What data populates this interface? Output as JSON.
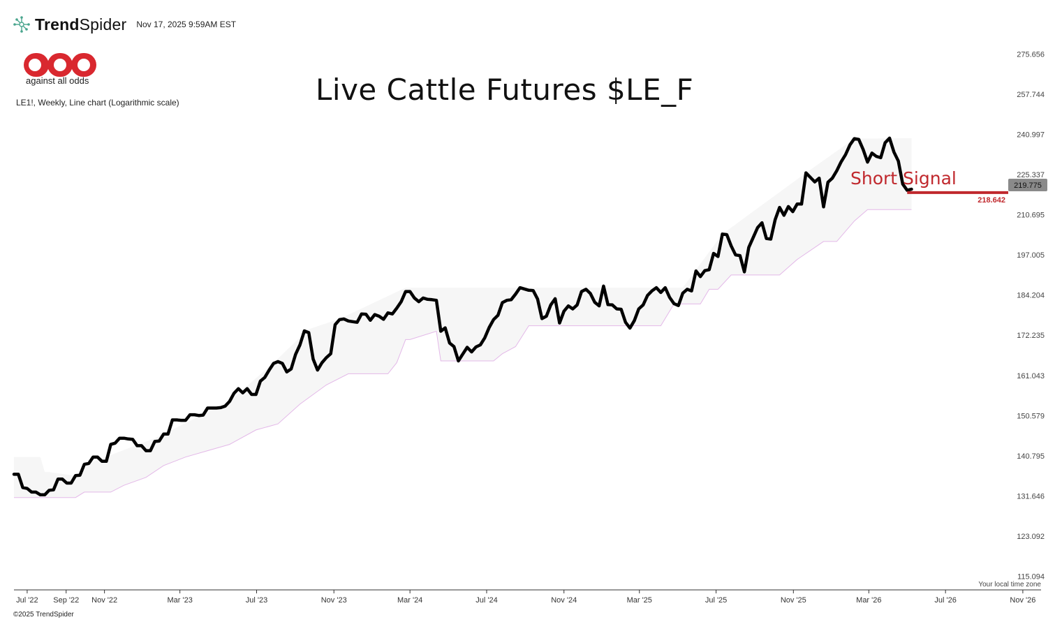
{
  "header": {
    "brand_bold": "Trend",
    "brand_light": "Spider",
    "timestamp": "Nov 17, 2025 9:59AM EST"
  },
  "logo": {
    "tagline": "against all odds"
  },
  "chart_description": "LE1!, Weekly, Line chart (Logarithmic scale)",
  "footer": {
    "copyright": "©2025 TrendSpider",
    "timezone_note": "Your local time zone"
  },
  "colors": {
    "price_line": "#000000",
    "signal": "#c0282d",
    "band_fill": "#f6f6f6",
    "band_edge": "#e3b8e8",
    "last_price_tag": "#8a8a8a"
  },
  "chart_data": {
    "type": "line",
    "title": "Live Cattle Futures $LE_F",
    "scale": "log",
    "ylim": [
      112.5,
      282
    ],
    "y_ticks": [
      "275.656",
      "257.744",
      "240.997",
      "225.337",
      "210.695",
      "197.005",
      "184.204",
      "172.235",
      "161.043",
      "150.579",
      "140.795",
      "131.646",
      "123.092",
      "115.094"
    ],
    "x_ticks": [
      "Jul '22",
      "Sep '22",
      "Nov '22",
      "Mar '23",
      "Jul '23",
      "Nov '23",
      "Mar '24",
      "Jul '24",
      "Nov '24",
      "Mar '25",
      "Jul '25",
      "Nov '25",
      "Mar '26",
      "Jul '26",
      "Nov '26"
    ],
    "x_range": [
      "2022-06-10",
      "2026-11-30"
    ],
    "series": [
      {
        "role": "price",
        "points": [
          [
            "2022-06-10",
            136.5
          ],
          [
            "2022-06-17",
            136.5
          ],
          [
            "2022-06-24",
            133.5
          ],
          [
            "2022-07-01",
            133.3
          ],
          [
            "2022-07-08",
            132.5
          ],
          [
            "2022-07-15",
            132.5
          ],
          [
            "2022-07-22",
            131.9
          ],
          [
            "2022-07-29",
            131.9
          ],
          [
            "2022-08-05",
            132.9
          ],
          [
            "2022-08-12",
            133.0
          ],
          [
            "2022-08-19",
            135.4
          ],
          [
            "2022-08-26",
            135.4
          ],
          [
            "2022-09-02",
            134.5
          ],
          [
            "2022-09-09",
            134.5
          ],
          [
            "2022-09-16",
            136.2
          ],
          [
            "2022-09-23",
            136.3
          ],
          [
            "2022-09-30",
            138.8
          ],
          [
            "2022-10-07",
            139.0
          ],
          [
            "2022-10-14",
            140.5
          ],
          [
            "2022-10-21",
            140.5
          ],
          [
            "2022-10-28",
            139.5
          ],
          [
            "2022-11-04",
            139.5
          ],
          [
            "2022-11-11",
            143.5
          ],
          [
            "2022-11-18",
            143.8
          ],
          [
            "2022-11-25",
            145.0
          ],
          [
            "2022-12-02",
            145.0
          ],
          [
            "2022-12-09",
            144.8
          ],
          [
            "2022-12-16",
            144.7
          ],
          [
            "2022-12-23",
            143.2
          ],
          [
            "2022-12-30",
            143.2
          ],
          [
            "2023-01-06",
            142.0
          ],
          [
            "2023-01-13",
            142.0
          ],
          [
            "2023-01-20",
            144.2
          ],
          [
            "2023-01-27",
            144.3
          ],
          [
            "2023-02-03",
            146.0
          ],
          [
            "2023-02-10",
            146.0
          ],
          [
            "2023-02-17",
            149.5
          ],
          [
            "2023-02-24",
            149.5
          ],
          [
            "2023-03-03",
            149.4
          ],
          [
            "2023-03-10",
            149.4
          ],
          [
            "2023-03-17",
            150.8
          ],
          [
            "2023-03-24",
            150.8
          ],
          [
            "2023-03-31",
            150.6
          ],
          [
            "2023-04-07",
            150.7
          ],
          [
            "2023-04-14",
            152.5
          ],
          [
            "2023-04-21",
            152.5
          ],
          [
            "2023-04-28",
            152.5
          ],
          [
            "2023-05-05",
            152.6
          ],
          [
            "2023-05-12",
            153.0
          ],
          [
            "2023-05-19",
            154.2
          ],
          [
            "2023-05-26",
            156.3
          ],
          [
            "2023-06-02",
            157.5
          ],
          [
            "2023-06-09",
            156.4
          ],
          [
            "2023-06-16",
            157.5
          ],
          [
            "2023-06-23",
            156.0
          ],
          [
            "2023-06-30",
            156.0
          ],
          [
            "2023-07-07",
            159.5
          ],
          [
            "2023-07-14",
            160.5
          ],
          [
            "2023-07-21",
            162.5
          ],
          [
            "2023-07-28",
            164.3
          ],
          [
            "2023-08-04",
            164.8
          ],
          [
            "2023-08-11",
            164.3
          ],
          [
            "2023-08-18",
            162.0
          ],
          [
            "2023-08-25",
            162.8
          ],
          [
            "2023-09-01",
            166.8
          ],
          [
            "2023-09-08",
            169.5
          ],
          [
            "2023-09-15",
            173.5
          ],
          [
            "2023-09-22",
            173.0
          ],
          [
            "2023-09-29",
            165.5
          ],
          [
            "2023-10-06",
            162.5
          ],
          [
            "2023-10-13",
            164.5
          ],
          [
            "2023-10-20",
            165.9
          ],
          [
            "2023-10-27",
            167.0
          ],
          [
            "2023-11-03",
            175.3
          ],
          [
            "2023-11-10",
            176.8
          ],
          [
            "2023-11-17",
            177.0
          ],
          [
            "2023-11-24",
            176.4
          ],
          [
            "2023-12-01",
            176.2
          ],
          [
            "2023-12-08",
            176.0
          ],
          [
            "2023-12-15",
            178.5
          ],
          [
            "2023-12-22",
            178.4
          ],
          [
            "2023-12-29",
            176.6
          ],
          [
            "2024-01-05",
            178.3
          ],
          [
            "2024-01-12",
            177.8
          ],
          [
            "2024-01-19",
            176.9
          ],
          [
            "2024-01-26",
            178.8
          ],
          [
            "2024-02-02",
            178.5
          ],
          [
            "2024-02-09",
            180.2
          ],
          [
            "2024-02-16",
            182.2
          ],
          [
            "2024-02-23",
            185.3
          ],
          [
            "2024-03-01",
            185.3
          ],
          [
            "2024-03-08",
            183.3
          ],
          [
            "2024-03-15",
            182.2
          ],
          [
            "2024-03-22",
            183.3
          ],
          [
            "2024-03-29",
            182.9
          ],
          [
            "2024-04-05",
            182.8
          ],
          [
            "2024-04-12",
            182.6
          ],
          [
            "2024-04-19",
            173.4
          ],
          [
            "2024-04-26",
            174.4
          ],
          [
            "2024-05-03",
            170.0
          ],
          [
            "2024-05-10",
            169.0
          ],
          [
            "2024-05-17",
            165.0
          ],
          [
            "2024-05-24",
            166.9
          ],
          [
            "2024-05-31",
            168.8
          ],
          [
            "2024-06-07",
            167.5
          ],
          [
            "2024-06-14",
            168.9
          ],
          [
            "2024-06-21",
            169.5
          ],
          [
            "2024-06-28",
            171.5
          ],
          [
            "2024-07-05",
            174.5
          ],
          [
            "2024-07-12",
            176.8
          ],
          [
            "2024-07-19",
            178.1
          ],
          [
            "2024-07-26",
            181.9
          ],
          [
            "2024-08-02",
            182.6
          ],
          [
            "2024-08-09",
            182.8
          ],
          [
            "2024-08-16",
            184.5
          ],
          [
            "2024-08-23",
            186.5
          ],
          [
            "2024-08-30",
            186.1
          ],
          [
            "2024-09-06",
            185.7
          ],
          [
            "2024-09-13",
            185.6
          ],
          [
            "2024-09-20",
            183.0
          ],
          [
            "2024-09-27",
            177.1
          ],
          [
            "2024-10-04",
            177.8
          ],
          [
            "2024-10-11",
            181.2
          ],
          [
            "2024-10-18",
            183.1
          ],
          [
            "2024-10-25",
            175.8
          ],
          [
            "2024-11-01",
            179.3
          ],
          [
            "2024-11-08",
            180.9
          ],
          [
            "2024-11-15",
            180.0
          ],
          [
            "2024-11-22",
            181.2
          ],
          [
            "2024-11-29",
            185.3
          ],
          [
            "2024-12-06",
            186.0
          ],
          [
            "2024-12-13",
            184.7
          ],
          [
            "2024-12-20",
            182.0
          ],
          [
            "2024-12-27",
            180.9
          ],
          [
            "2025-01-03",
            187.0
          ],
          [
            "2025-01-10",
            181.3
          ],
          [
            "2025-01-17",
            181.2
          ],
          [
            "2025-01-24",
            180.0
          ],
          [
            "2025-01-31",
            179.9
          ],
          [
            "2025-02-07",
            176.0
          ],
          [
            "2025-02-14",
            174.3
          ],
          [
            "2025-02-21",
            176.5
          ],
          [
            "2025-02-28",
            180.0
          ],
          [
            "2025-03-07",
            181.2
          ],
          [
            "2025-03-14",
            184.1
          ],
          [
            "2025-03-21",
            185.5
          ],
          [
            "2025-03-28",
            186.5
          ],
          [
            "2025-04-04",
            185.0
          ],
          [
            "2025-04-11",
            186.5
          ],
          [
            "2025-04-18",
            183.5
          ],
          [
            "2025-04-25",
            181.6
          ],
          [
            "2025-05-02",
            181.0
          ],
          [
            "2025-05-09",
            184.8
          ],
          [
            "2025-05-16",
            186.0
          ],
          [
            "2025-05-23",
            185.5
          ],
          [
            "2025-05-30",
            191.8
          ],
          [
            "2025-06-06",
            190.0
          ],
          [
            "2025-06-13",
            191.9
          ],
          [
            "2025-06-20",
            192.2
          ],
          [
            "2025-06-27",
            197.5
          ],
          [
            "2025-07-04",
            196.5
          ],
          [
            "2025-07-11",
            204.0
          ],
          [
            "2025-07-18",
            203.8
          ],
          [
            "2025-07-25",
            200.0
          ],
          [
            "2025-08-01",
            197.0
          ],
          [
            "2025-08-08",
            196.8
          ],
          [
            "2025-08-15",
            191.5
          ],
          [
            "2025-08-22",
            199.5
          ],
          [
            "2025-08-29",
            202.8
          ],
          [
            "2025-09-05",
            206.2
          ],
          [
            "2025-09-12",
            207.9
          ],
          [
            "2025-09-19",
            202.5
          ],
          [
            "2025-09-26",
            202.3
          ],
          [
            "2025-10-03",
            209.0
          ],
          [
            "2025-10-10",
            213.3
          ],
          [
            "2025-10-17",
            210.5
          ],
          [
            "2025-10-24",
            213.6
          ],
          [
            "2025-10-31",
            211.8
          ],
          [
            "2025-11-07",
            214.5
          ],
          [
            "2025-11-14",
            214.5
          ],
          [
            "2025-11-21",
            226.0
          ],
          [
            "2025-11-28",
            224.3
          ],
          [
            "2025-12-05",
            222.6
          ],
          [
            "2025-12-12",
            224.0
          ],
          [
            "2025-12-19",
            213.5
          ],
          [
            "2025-12-26",
            222.5
          ],
          [
            "2026-01-02",
            224.0
          ],
          [
            "2026-01-09",
            226.8
          ],
          [
            "2026-01-16",
            230.2
          ],
          [
            "2026-01-23",
            233.0
          ],
          [
            "2026-01-30",
            236.8
          ],
          [
            "2026-02-06",
            239.3
          ],
          [
            "2026-02-13",
            239.0
          ],
          [
            "2026-02-20",
            235.0
          ],
          [
            "2026-02-27",
            230.1
          ],
          [
            "2026-03-06",
            233.6
          ],
          [
            "2026-03-13",
            232.3
          ],
          [
            "2026-03-20",
            231.8
          ],
          [
            "2026-03-27",
            237.7
          ],
          [
            "2026-04-03",
            239.5
          ],
          [
            "2026-04-10",
            234.0
          ],
          [
            "2026-04-17",
            230.5
          ],
          [
            "2026-04-24",
            221.8
          ],
          [
            "2026-05-01",
            219.5
          ],
          [
            "2026-05-08",
            219.9
          ]
        ]
      },
      {
        "role": "band_upper",
        "points": [
          [
            "2022-06-10",
            140.5
          ],
          [
            "2022-07-22",
            140.5
          ],
          [
            "2022-07-29",
            137.0
          ],
          [
            "2022-08-05",
            137.0
          ],
          [
            "2022-09-23",
            136.0
          ],
          [
            "2022-10-07",
            139.0
          ],
          [
            "2023-01-20",
            145.0
          ],
          [
            "2023-05-19",
            154.2
          ],
          [
            "2023-07-28",
            164.5
          ],
          [
            "2023-09-22",
            174.0
          ],
          [
            "2023-11-10",
            177.0
          ],
          [
            "2024-02-23",
            186.5
          ],
          [
            "2024-05-10",
            186.5
          ],
          [
            "2024-08-09",
            186.5
          ],
          [
            "2024-09-27",
            186.5
          ],
          [
            "2024-12-13",
            186.5
          ],
          [
            "2025-03-07",
            186.5
          ],
          [
            "2025-05-09",
            186.5
          ],
          [
            "2025-07-11",
            204.0
          ],
          [
            "2025-11-21",
            226.0
          ],
          [
            "2026-02-06",
            239.3
          ],
          [
            "2026-05-08",
            239.5
          ]
        ]
      },
      {
        "role": "band_lower",
        "points": [
          [
            "2022-06-10",
            131.3
          ],
          [
            "2022-09-16",
            131.3
          ],
          [
            "2022-09-30",
            132.5
          ],
          [
            "2022-11-11",
            132.5
          ],
          [
            "2022-12-02",
            134.0
          ],
          [
            "2023-01-06",
            135.8
          ],
          [
            "2023-02-03",
            138.5
          ],
          [
            "2023-03-10",
            140.5
          ],
          [
            "2023-04-14",
            142.0
          ],
          [
            "2023-05-19",
            143.5
          ],
          [
            "2023-06-30",
            147.0
          ],
          [
            "2023-08-04",
            148.5
          ],
          [
            "2023-09-08",
            153.5
          ],
          [
            "2023-10-20",
            158.5
          ],
          [
            "2023-11-24",
            161.5
          ],
          [
            "2024-01-26",
            161.5
          ],
          [
            "2024-02-09",
            164.5
          ],
          [
            "2024-02-23",
            171.0
          ],
          [
            "2024-03-01",
            171.0
          ],
          [
            "2024-04-12",
            173.4
          ],
          [
            "2024-04-19",
            165.0
          ],
          [
            "2024-07-12",
            165.0
          ],
          [
            "2024-07-26",
            167.0
          ],
          [
            "2024-08-16",
            169.0
          ],
          [
            "2024-09-06",
            175.0
          ],
          [
            "2025-04-04",
            175.0
          ],
          [
            "2025-04-25",
            181.5
          ],
          [
            "2025-06-06",
            181.5
          ],
          [
            "2025-06-20",
            186.0
          ],
          [
            "2025-07-04",
            186.0
          ],
          [
            "2025-07-25",
            190.5
          ],
          [
            "2025-10-10",
            190.5
          ],
          [
            "2025-11-07",
            195.5
          ],
          [
            "2025-12-19",
            201.5
          ],
          [
            "2026-01-09",
            201.5
          ],
          [
            "2026-02-06",
            208.5
          ],
          [
            "2026-02-27",
            212.5
          ],
          [
            "2026-05-08",
            212.5
          ]
        ]
      }
    ],
    "last_price": "219.775",
    "signal": {
      "label": "Short Signal",
      "value": "218.642",
      "level": 218.642,
      "x_start": "2026-05-01"
    }
  }
}
